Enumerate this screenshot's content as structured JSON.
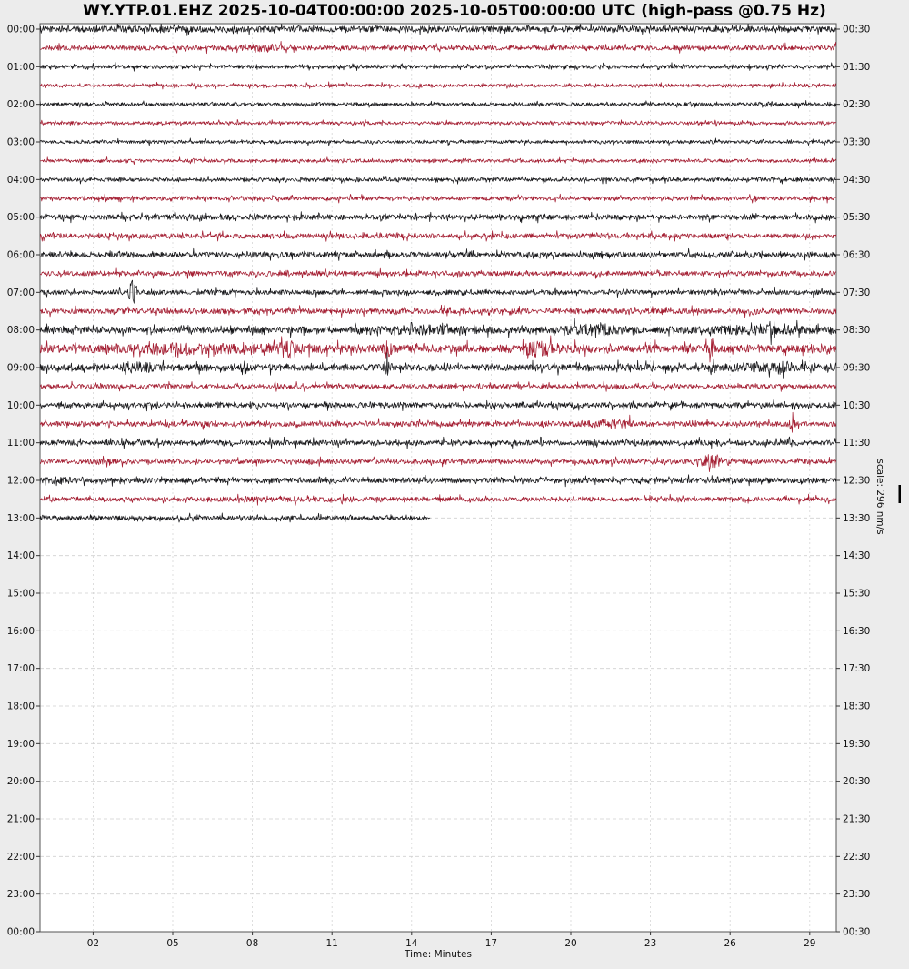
{
  "title": "WY.YTP.01.EHZ 2025-10-04T00:00:00 2025-10-05T00:00:00 UTC (high-pass @0.75 Hz)",
  "xlabel": "Time: Minutes",
  "scale_label": "scale: 296 nm/s",
  "colors": {
    "background": "#ececec",
    "plot_bg": "#ffffff",
    "trace_black": "#17171a",
    "trace_red": "#a41e32",
    "grid": "#d0d0d0",
    "frame": "#555555",
    "tick": "#333333",
    "text": "#111111",
    "scale_bar": "#000000"
  },
  "axes": {
    "x_ticks": [
      {
        "label": "02",
        "minute": 2
      },
      {
        "label": "05",
        "minute": 5
      },
      {
        "label": "08",
        "minute": 8
      },
      {
        "label": "11",
        "minute": 11
      },
      {
        "label": "14",
        "minute": 14
      },
      {
        "label": "17",
        "minute": 17
      },
      {
        "label": "20",
        "minute": 20
      },
      {
        "label": "23",
        "minute": 23
      },
      {
        "label": "26",
        "minute": 26
      },
      {
        "label": "29",
        "minute": 29
      }
    ],
    "left_labels": [
      "00:00",
      "01:00",
      "02:00",
      "03:00",
      "04:00",
      "05:00",
      "06:00",
      "07:00",
      "08:00",
      "09:00",
      "10:00",
      "11:00",
      "12:00",
      "13:00",
      "14:00",
      "15:00",
      "16:00",
      "17:00",
      "18:00",
      "19:00",
      "20:00",
      "21:00",
      "22:00",
      "23:00",
      "00:00"
    ],
    "right_labels": [
      "00:30",
      "01:30",
      "02:30",
      "03:30",
      "04:30",
      "05:30",
      "06:30",
      "07:30",
      "08:30",
      "09:30",
      "10:30",
      "11:30",
      "12:30",
      "13:30",
      "14:30",
      "15:30",
      "16:30",
      "17:30",
      "18:30",
      "19:30",
      "20:30",
      "21:30",
      "22:30",
      "23:30",
      "00:30"
    ]
  },
  "chart_data": {
    "type": "helicorder",
    "station": "WY.YTP.01.EHZ",
    "start_time": "2025-10-04T00:00:00 UTC",
    "end_time": "2025-10-05T00:00:00 UTC",
    "filter": "high-pass @0.75 Hz",
    "minutes_per_line": 30,
    "scale": "296 nm/s",
    "alternating_colors": [
      "black",
      "red"
    ],
    "rows": [
      {
        "start": "00:00",
        "end": "00:30",
        "color": "black",
        "amp": 3.8,
        "bursts": []
      },
      {
        "start": "00:30",
        "end": "01:00",
        "color": "red",
        "amp": 3.0,
        "bursts": [
          {
            "m": 8.4,
            "w": 0.5,
            "f": 0.8
          }
        ]
      },
      {
        "start": "01:00",
        "end": "01:30",
        "color": "black",
        "amp": 2.4,
        "bursts": []
      },
      {
        "start": "01:30",
        "end": "02:00",
        "color": "red",
        "amp": 2.0,
        "bursts": []
      },
      {
        "start": "02:00",
        "end": "02:30",
        "color": "black",
        "amp": 2.2,
        "bursts": [
          {
            "m": 27.5,
            "w": 0.3,
            "f": 0.5
          }
        ]
      },
      {
        "start": "02:30",
        "end": "03:00",
        "color": "red",
        "amp": 2.0,
        "bursts": []
      },
      {
        "start": "03:00",
        "end": "03:30",
        "color": "black",
        "amp": 2.0,
        "bursts": []
      },
      {
        "start": "03:30",
        "end": "04:00",
        "color": "red",
        "amp": 2.1,
        "bursts": []
      },
      {
        "start": "04:00",
        "end": "04:30",
        "color": "black",
        "amp": 2.4,
        "bursts": []
      },
      {
        "start": "04:30",
        "end": "05:00",
        "color": "red",
        "amp": 2.5,
        "bursts": []
      },
      {
        "start": "05:00",
        "end": "05:30",
        "color": "black",
        "amp": 3.2,
        "bursts": []
      },
      {
        "start": "05:30",
        "end": "06:00",
        "color": "red",
        "amp": 3.0,
        "bursts": []
      },
      {
        "start": "06:00",
        "end": "06:30",
        "color": "black",
        "amp": 3.4,
        "bursts": []
      },
      {
        "start": "06:30",
        "end": "07:00",
        "color": "red",
        "amp": 3.0,
        "bursts": []
      },
      {
        "start": "07:00",
        "end": "07:30",
        "color": "black",
        "amp": 3.0,
        "bursts": [
          {
            "m": 3.5,
            "w": 0.1,
            "f": 5.5
          }
        ]
      },
      {
        "start": "07:30",
        "end": "08:00",
        "color": "red",
        "amp": 3.4,
        "bursts": []
      },
      {
        "start": "08:00",
        "end": "08:30",
        "color": "black",
        "amp": 4.2,
        "bursts": [
          {
            "m": 14.5,
            "w": 1.2,
            "f": 0.7
          },
          {
            "m": 20.8,
            "w": 0.8,
            "f": 0.8
          },
          {
            "m": 26.8,
            "w": 1.3,
            "f": 0.6
          },
          {
            "m": 27.6,
            "w": 0.1,
            "f": 1.8
          }
        ]
      },
      {
        "start": "08:30",
        "end": "09:00",
        "color": "red",
        "amp": 4.8,
        "bursts": [
          {
            "m": 5.5,
            "w": 2.2,
            "f": 0.6
          },
          {
            "m": 9.3,
            "w": 0.3,
            "f": 1.4
          },
          {
            "m": 13.1,
            "w": 0.1,
            "f": 2.0
          },
          {
            "m": 18.8,
            "w": 0.5,
            "f": 1.3
          },
          {
            "m": 25.3,
            "w": 0.08,
            "f": 1.8
          }
        ]
      },
      {
        "start": "09:00",
        "end": "09:30",
        "color": "black",
        "amp": 4.2,
        "bursts": [
          {
            "m": 3.6,
            "w": 0.5,
            "f": 0.8
          },
          {
            "m": 7.7,
            "w": 0.08,
            "f": 2.0
          },
          {
            "m": 13.1,
            "w": 0.08,
            "f": 2.4
          },
          {
            "m": 27.3,
            "w": 1.0,
            "f": 0.5
          }
        ]
      },
      {
        "start": "09:30",
        "end": "10:00",
        "color": "red",
        "amp": 2.8,
        "bursts": []
      },
      {
        "start": "10:00",
        "end": "10:30",
        "color": "black",
        "amp": 3.2,
        "bursts": []
      },
      {
        "start": "10:30",
        "end": "11:00",
        "color": "red",
        "amp": 3.2,
        "bursts": [
          {
            "m": 21.5,
            "w": 0.7,
            "f": 0.9
          },
          {
            "m": 28.3,
            "w": 0.08,
            "f": 2.6
          }
        ]
      },
      {
        "start": "11:00",
        "end": "11:30",
        "color": "black",
        "amp": 3.2,
        "bursts": [
          {
            "m": 28.2,
            "w": 0.08,
            "f": 2.0
          }
        ]
      },
      {
        "start": "11:30",
        "end": "12:00",
        "color": "red",
        "amp": 2.8,
        "bursts": [
          {
            "m": 2.3,
            "w": 0.3,
            "f": 0.8
          },
          {
            "m": 25.3,
            "w": 0.3,
            "f": 2.6
          }
        ]
      },
      {
        "start": "12:00",
        "end": "12:30",
        "color": "black",
        "amp": 3.4,
        "bursts": [
          {
            "m": 0.8,
            "w": 0.4,
            "f": 0.5
          }
        ]
      },
      {
        "start": "12:30",
        "end": "13:00",
        "color": "red",
        "amp": 2.8,
        "bursts": [
          {
            "m": 9.0,
            "w": 2.0,
            "f": 0.3
          }
        ]
      },
      {
        "start": "13:00",
        "end": "13:30",
        "color": "black",
        "amp": 3.0,
        "bursts": [],
        "data_end_minute": 14.7
      }
    ]
  }
}
